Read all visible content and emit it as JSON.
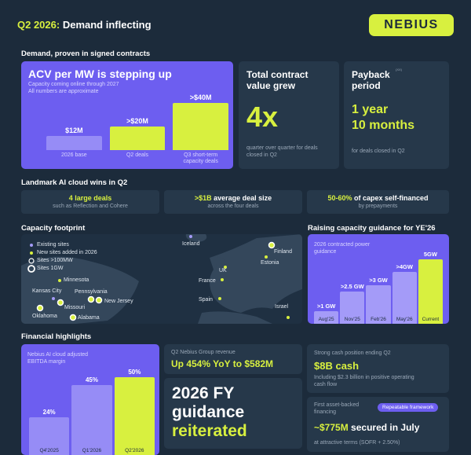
{
  "header": {
    "title_highlight": "Q2 2026:",
    "title": "Demand inflecting",
    "logo": "NEBIUS"
  },
  "demand": {
    "heading": "Demand, proven in signed contracts",
    "acv": {
      "title": "ACV per MW is stepping up",
      "subtitle": [
        "Capacity coming online through 2027",
        "All numbers are approximate"
      ],
      "chart": {
        "type": "bar",
        "categories": [
          "2026 base",
          "Q2 deals",
          "Q3 short-term capacity deals"
        ],
        "values": [
          12,
          20,
          40
        ],
        "value_labels": [
          "$12M",
          ">$20M",
          ">$40M"
        ],
        "colors": [
          "#968cf6",
          "#d8f03f",
          "#d8f03f"
        ]
      }
    },
    "contract_value": {
      "title": "Total contract value grew",
      "value": "4x",
      "note": "quarter over quarter for deals closed in Q2"
    },
    "payback": {
      "title": "Payback period",
      "footnote": "(XX)",
      "value": [
        "1 year",
        "10 months"
      ],
      "note": "for deals closed in Q2"
    }
  },
  "wins": {
    "heading": "Landmark AI cloud wins in Q2",
    "items": [
      {
        "highlight": "4 large deals",
        "detail": "such as Reflection and Cohere"
      },
      {
        "highlight": ">$1B",
        "text": "average deal size",
        "detail": "across the four deals"
      },
      {
        "highlight": "50-60%",
        "text": "of capex self-financed",
        "detail": "by prepayments"
      }
    ]
  },
  "footprint": {
    "heading": "Capacity footprint",
    "legend": [
      "Existing sites",
      "New sites added in 2026",
      "Sites >100MW",
      "Sites 1GW"
    ],
    "sites": [
      "Iceland",
      "Finland",
      "Estonia",
      "UK",
      "France",
      "Spain",
      "Israel",
      "Minnesota",
      "Kansas City",
      "Missouri",
      "Pennsylvania",
      "New Jersey",
      "Oklahoma",
      "Alabama"
    ]
  },
  "guidance": {
    "heading": "Raising capacity guidance for YE'26",
    "subtitle": "2026 contracted power guidance",
    "chart": {
      "type": "bar",
      "categories": [
        "Aug'25",
        "Nov'25",
        "Feb'26",
        "May'26",
        "Current"
      ],
      "values": [
        1,
        2.5,
        3,
        4,
        5
      ],
      "value_labels": [
        ">1 GW",
        ">2.5 GW",
        ">3 GW",
        ">4GW",
        "5GW"
      ],
      "colors": [
        "#a49bf8",
        "#a49bf8",
        "#a49bf8",
        "#a49bf8",
        "#d8f03f"
      ]
    }
  },
  "financials": {
    "heading": "Financial highlights",
    "ebitda": {
      "title": "Nebius AI cloud adjusted EBITDA margin",
      "chart": {
        "type": "bar",
        "categories": [
          "Q4'2025",
          "Q1'2026",
          "Q2'2026"
        ],
        "values": [
          24,
          45,
          50
        ],
        "value_labels": [
          "24%",
          "45%",
          "50%"
        ],
        "colors": [
          "#968cf6",
          "#968cf6",
          "#d8f03f"
        ]
      }
    },
    "revenue": {
      "label": "Q2 Nebius Group revenue",
      "value": "Up 454% YoY to $582M"
    },
    "fy_guidance": {
      "text": "2026 FY guidance",
      "highlight": "reiterated"
    },
    "cash": {
      "label": "Strong cash position ending Q2",
      "value": "$8B cash",
      "note": "Including $2.3 billion in positive operating cash flow"
    },
    "financing": {
      "label": "First asset-backed financing",
      "tag": "Repeatable framework",
      "highlight": "~$775M",
      "text": "secured in July",
      "note": "at attractive terms (SOFR + 2.50%)"
    }
  }
}
